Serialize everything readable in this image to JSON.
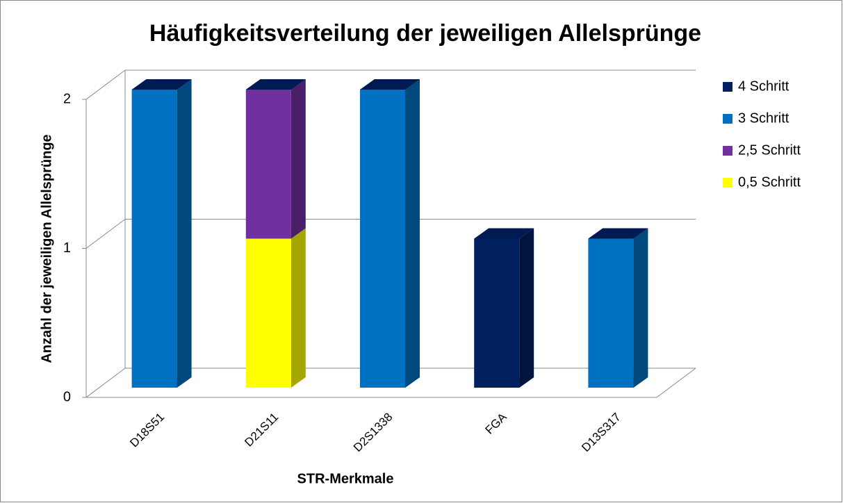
{
  "chart_data": {
    "type": "bar3d_stacked",
    "title": "Häufigkeitsverteilung der jeweiligen Allelsprünge",
    "xlabel": "STR-Merkmale",
    "ylabel": "Anzahl der jeweiligen Allelsprünge",
    "categories": [
      "D18S51",
      "D21S11",
      "D2S1338",
      "FGA",
      "D13S317"
    ],
    "series": [
      {
        "name": "4 Schritt",
        "color": "#002060",
        "values": [
          0,
          0,
          0,
          1,
          0
        ]
      },
      {
        "name": "3 Schritt",
        "color": "#0070c0",
        "values": [
          2,
          0,
          2,
          0,
          1
        ]
      },
      {
        "name": "2,5 Schritt",
        "color": "#7030a0",
        "values": [
          0,
          1,
          0,
          0,
          0
        ]
      },
      {
        "name": "0,5 Schritt",
        "color": "#ffff00",
        "values": [
          0,
          1,
          0,
          0,
          0
        ]
      }
    ],
    "ylim": [
      0,
      2
    ],
    "yticks": [
      0,
      1,
      2
    ],
    "grid": true,
    "legend": "right"
  }
}
